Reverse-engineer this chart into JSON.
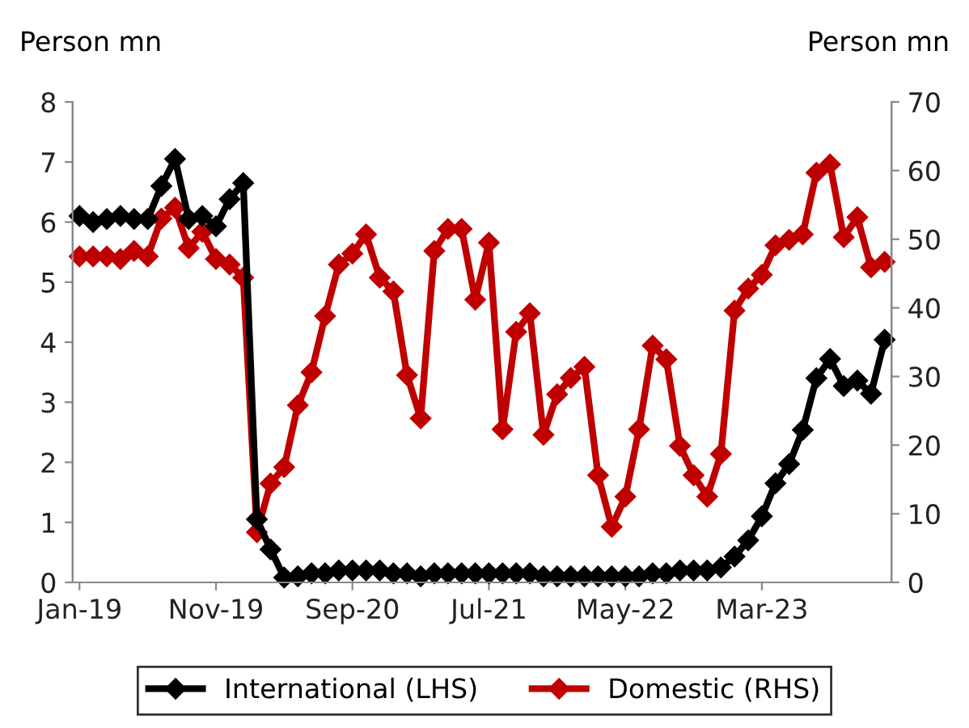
{
  "chart_data": {
    "type": "line",
    "categories": [
      "Jan-19",
      null,
      null,
      null,
      null,
      null,
      null,
      null,
      null,
      null,
      "Nov-19",
      null,
      null,
      null,
      null,
      null,
      null,
      null,
      null,
      null,
      "Sep-20",
      null,
      null,
      null,
      null,
      null,
      null,
      null,
      null,
      null,
      "Jul-21",
      null,
      null,
      null,
      null,
      null,
      null,
      null,
      null,
      null,
      "May-22",
      null,
      null,
      null,
      null,
      null,
      null,
      null,
      null,
      null,
      "Mar-23",
      null,
      null,
      null,
      null,
      null,
      null,
      null,
      null,
      null
    ],
    "ylabel": "Person mn",
    "y2label": "Person mn",
    "ylim": [
      0,
      8
    ],
    "yticks": [
      0,
      1,
      2,
      3,
      4,
      5,
      6,
      7,
      8
    ],
    "y2lim": [
      0,
      70
    ],
    "y2ticks": [
      0,
      10,
      20,
      30,
      40,
      50,
      60,
      70
    ],
    "marker": "diamond",
    "line_style": "solid",
    "grid": false,
    "legend": "bottom",
    "series": [
      {
        "name": "International (LHS)",
        "color": "#000000",
        "values": [
          6.1,
          6.0,
          6.05,
          6.1,
          6.05,
          6.05,
          6.6,
          7.05,
          6.05,
          6.1,
          5.93,
          6.38,
          6.65,
          1.05,
          0.55,
          0.08,
          0.1,
          0.15,
          0.15,
          0.2,
          0.2,
          0.2,
          0.2,
          0.15,
          0.15,
          0.1,
          0.15,
          0.15,
          0.15,
          0.15,
          0.15,
          0.15,
          0.15,
          0.15,
          0.1,
          0.1,
          0.1,
          0.1,
          0.1,
          0.1,
          0.1,
          0.1,
          0.15,
          0.15,
          0.2,
          0.2,
          0.2,
          0.25,
          0.43,
          0.7,
          1.1,
          1.65,
          1.97,
          2.54,
          3.4,
          3.72,
          3.27,
          3.36,
          3.14,
          4.04
        ]
      },
      {
        "name": "Domestic (RHS)",
        "color": "#c00000",
        "axis": "y2",
        "values": [
          47.5,
          47.5,
          47.5,
          47.1,
          48.3,
          47.5,
          53.0,
          54.6,
          48.7,
          51.1,
          47.1,
          46.3,
          44.4,
          7.3,
          14.4,
          16.8,
          25.8,
          30.6,
          38.8,
          46.3,
          47.9,
          50.7,
          44.4,
          42.4,
          30.2,
          23.9,
          48.3,
          51.5,
          51.5,
          41.2,
          49.5,
          22.3,
          36.5,
          39.2,
          21.5,
          27.4,
          29.8,
          31.4,
          15.6,
          8.1,
          12.5,
          22.3,
          34.5,
          32.5,
          19.9,
          15.6,
          12.5,
          18.7,
          39.6,
          42.8,
          44.8,
          49.1,
          49.9,
          50.7,
          59.7,
          60.9,
          50.3,
          53.2,
          45.9,
          46.7
        ]
      }
    ]
  }
}
